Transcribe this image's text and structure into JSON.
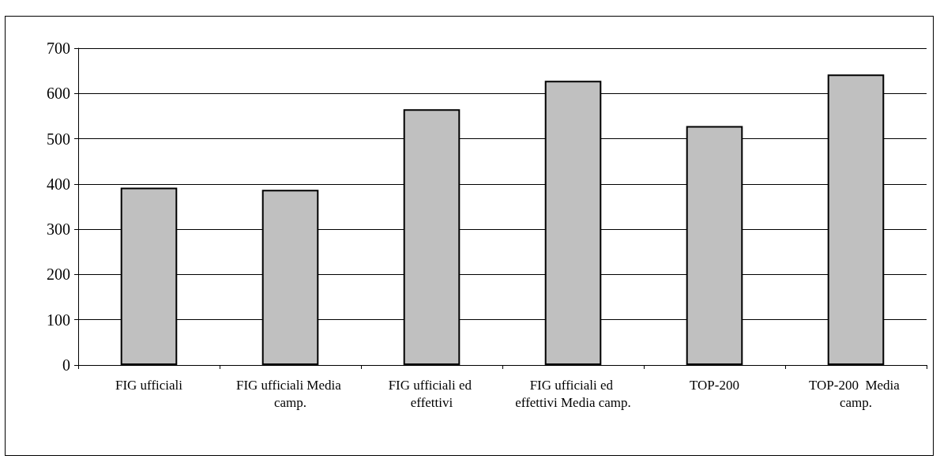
{
  "chart_data": {
    "type": "bar",
    "categories": [
      "FIG ufficiali",
      "FIG ufficiali Media camp.",
      "FIG ufficiali ed effettivi",
      "FIG ufficiali ed effettivi Media camp.",
      "TOP-200",
      "TOP-200  Media camp."
    ],
    "values": [
      392,
      387,
      565,
      628,
      528,
      642
    ],
    "color": "#c0c0c0",
    "ylim": [
      0,
      700
    ],
    "yticks": [
      0,
      100,
      200,
      300,
      400,
      500,
      600,
      700
    ],
    "grid": "y"
  }
}
